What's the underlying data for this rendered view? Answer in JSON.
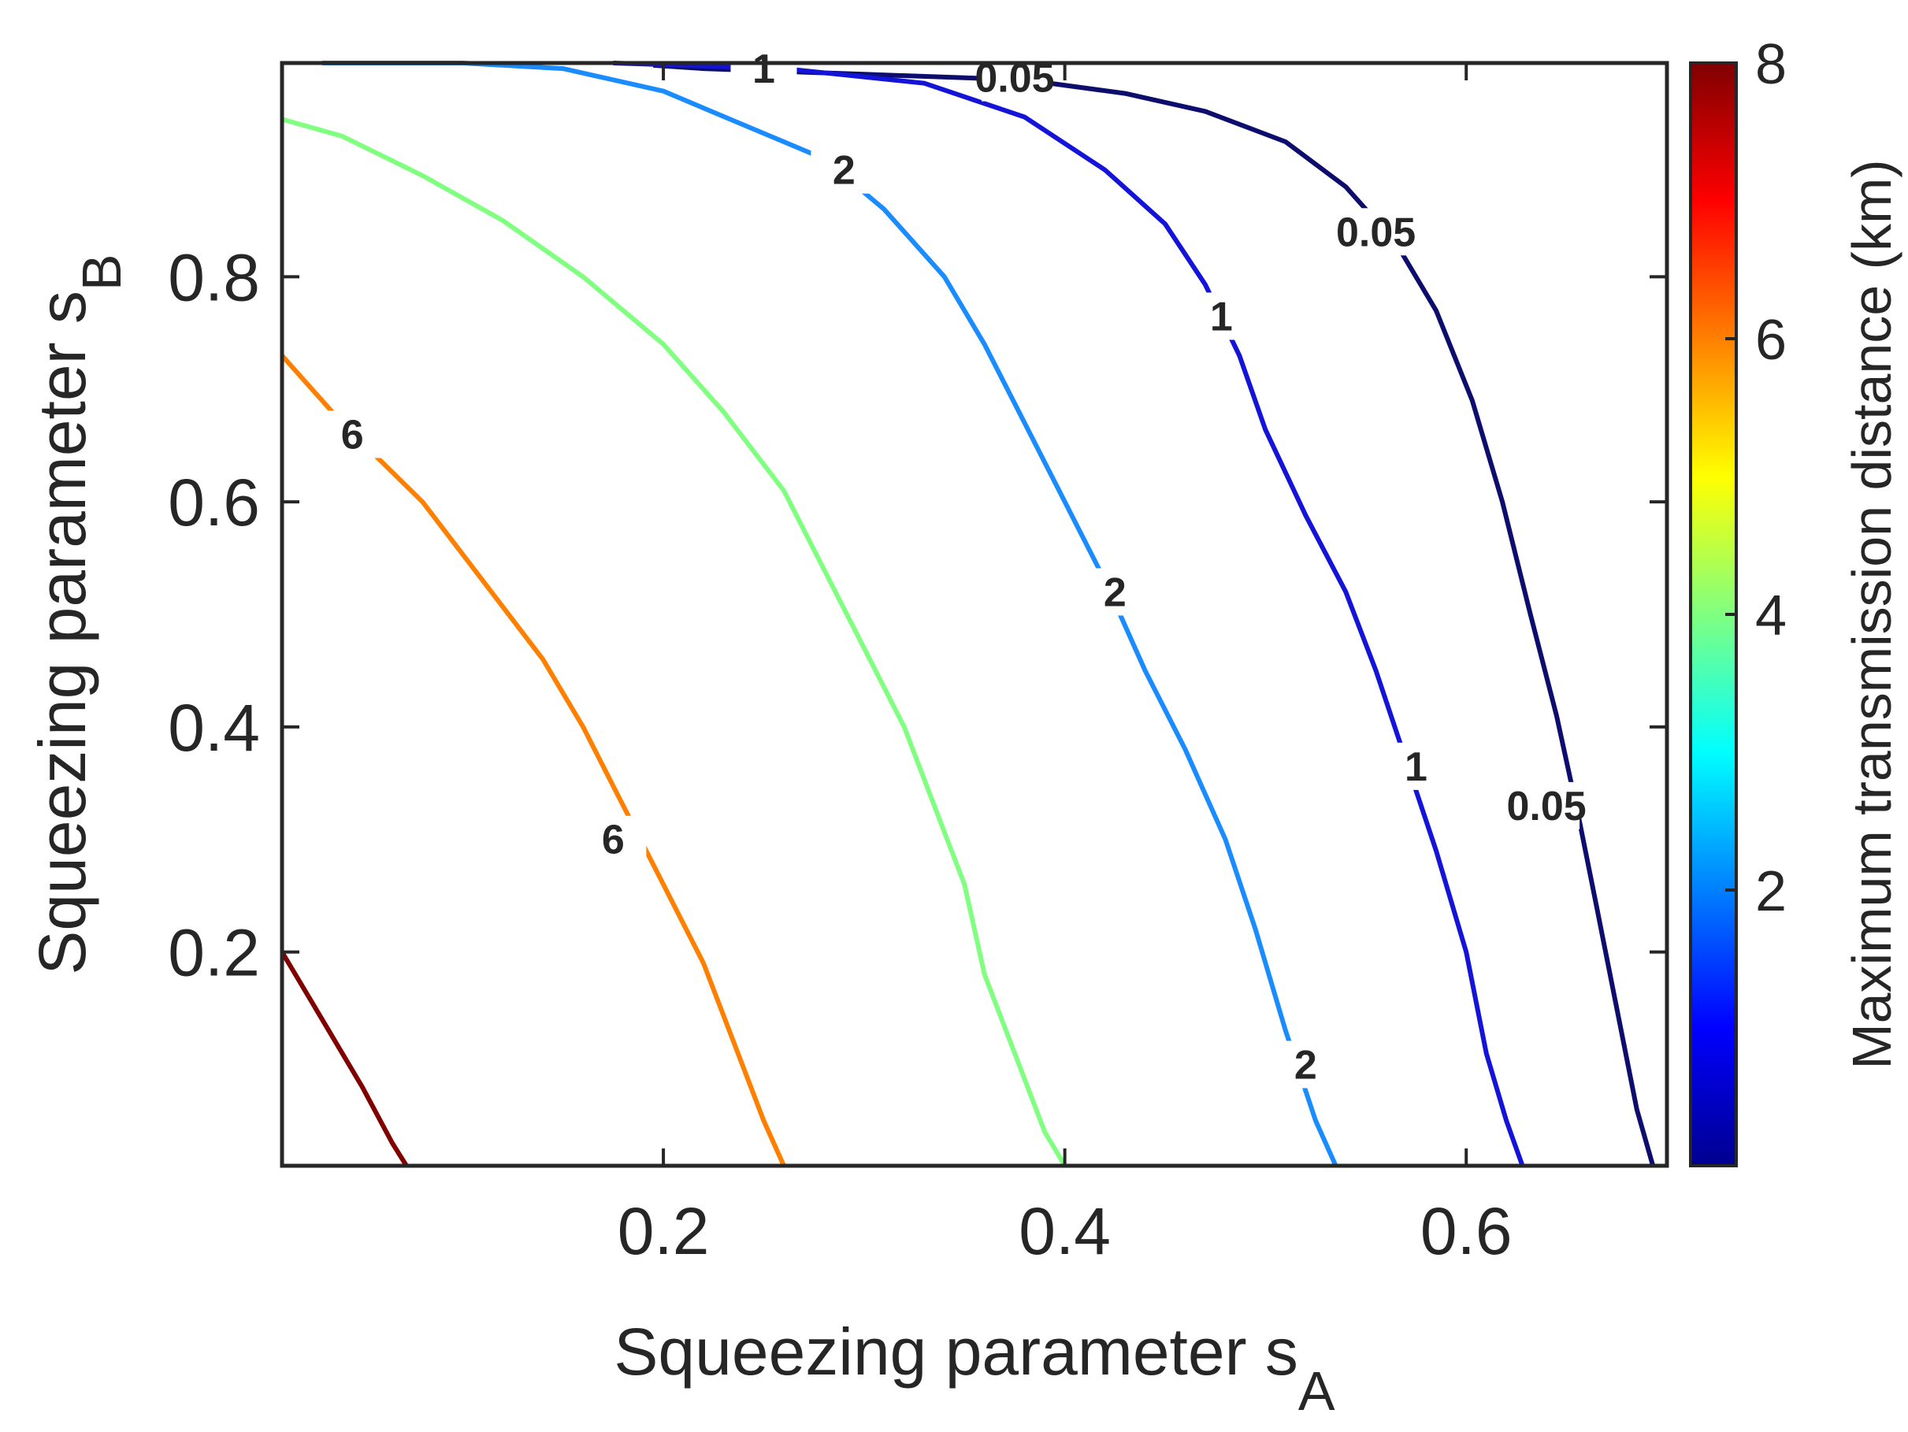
{
  "chart_data": {
    "type": "contour",
    "xlabel": "Squeezing parameter s",
    "xlabel_subscript": "A",
    "ylabel": "Squeezing parameter s",
    "ylabel_subscript": "B",
    "xlim": [
      0.01,
      0.7
    ],
    "ylim": [
      0.01,
      0.99
    ],
    "xticks": [
      "0.2",
      "0.4",
      "0.6"
    ],
    "yticks": [
      "0.2",
      "0.4",
      "0.6",
      "0.8"
    ],
    "grid": false,
    "colorbar": {
      "label": "Maximum transmission distance (km)",
      "range": [
        0,
        8
      ],
      "ticks": [
        "2",
        "4",
        "6",
        "8"
      ],
      "colormap": "jet"
    },
    "contours": [
      {
        "level": "0.05",
        "color": "#0d0d6e",
        "points": [
          [
            0.195,
            0.988
          ],
          [
            0.22,
            0.985
          ],
          [
            0.3,
            0.98
          ],
          [
            0.38,
            0.975
          ],
          [
            0.43,
            0.963
          ],
          [
            0.47,
            0.947
          ],
          [
            0.51,
            0.92
          ],
          [
            0.54,
            0.88
          ],
          [
            0.565,
            0.83
          ],
          [
            0.585,
            0.77
          ],
          [
            0.603,
            0.69
          ],
          [
            0.618,
            0.6
          ],
          [
            0.632,
            0.5
          ],
          [
            0.645,
            0.41
          ],
          [
            0.656,
            0.32
          ],
          [
            0.665,
            0.24
          ],
          [
            0.675,
            0.15
          ],
          [
            0.685,
            0.06
          ],
          [
            0.693,
            0.01
          ]
        ],
        "labels": [
          [
            0.375,
            0.977
          ],
          [
            0.555,
            0.84
          ],
          [
            0.64,
            0.33
          ]
        ]
      },
      {
        "level": "1",
        "color": "#1414d9",
        "points": [
          [
            0.175,
            0.99
          ],
          [
            0.26,
            0.985
          ],
          [
            0.33,
            0.972
          ],
          [
            0.38,
            0.942
          ],
          [
            0.42,
            0.895
          ],
          [
            0.45,
            0.847
          ],
          [
            0.47,
            0.793
          ],
          [
            0.487,
            0.73
          ],
          [
            0.5,
            0.664
          ],
          [
            0.52,
            0.588
          ],
          [
            0.54,
            0.52
          ],
          [
            0.555,
            0.45
          ],
          [
            0.57,
            0.37
          ],
          [
            0.585,
            0.29
          ],
          [
            0.6,
            0.2
          ],
          [
            0.61,
            0.11
          ],
          [
            0.62,
            0.05
          ],
          [
            0.628,
            0.01
          ]
        ],
        "labels": [
          [
            0.25,
            0.985
          ],
          [
            0.478,
            0.765
          ],
          [
            0.575,
            0.365
          ]
        ]
      },
      {
        "level": "2",
        "color": "#1a8cff",
        "points": [
          [
            0.03,
            0.99
          ],
          [
            0.1,
            0.99
          ],
          [
            0.15,
            0.985
          ],
          [
            0.2,
            0.965
          ],
          [
            0.24,
            0.935
          ],
          [
            0.28,
            0.905
          ],
          [
            0.31,
            0.86
          ],
          [
            0.34,
            0.8
          ],
          [
            0.36,
            0.74
          ],
          [
            0.38,
            0.67
          ],
          [
            0.4,
            0.6
          ],
          [
            0.42,
            0.53
          ],
          [
            0.44,
            0.45
          ],
          [
            0.46,
            0.38
          ],
          [
            0.48,
            0.3
          ],
          [
            0.495,
            0.22
          ],
          [
            0.51,
            0.13
          ],
          [
            0.525,
            0.05
          ],
          [
            0.535,
            0.01
          ]
        ],
        "labels": [
          [
            0.29,
            0.895
          ],
          [
            0.425,
            0.52
          ],
          [
            0.52,
            0.1
          ]
        ]
      },
      {
        "level": "4",
        "color": "#80ff80",
        "points": [
          [
            0.01,
            0.94
          ],
          [
            0.04,
            0.925
          ],
          [
            0.08,
            0.89
          ],
          [
            0.12,
            0.85
          ],
          [
            0.16,
            0.8
          ],
          [
            0.2,
            0.74
          ],
          [
            0.23,
            0.68
          ],
          [
            0.26,
            0.61
          ],
          [
            0.28,
            0.54
          ],
          [
            0.3,
            0.47
          ],
          [
            0.32,
            0.4
          ],
          [
            0.335,
            0.33
          ],
          [
            0.35,
            0.26
          ],
          [
            0.36,
            0.18
          ],
          [
            0.375,
            0.11
          ],
          [
            0.39,
            0.04
          ],
          [
            0.4,
            0.01
          ]
        ],
        "labels": []
      },
      {
        "level": "6",
        "color": "#ff8000",
        "points": [
          [
            0.01,
            0.73
          ],
          [
            0.04,
            0.67
          ],
          [
            0.08,
            0.6
          ],
          [
            0.11,
            0.53
          ],
          [
            0.14,
            0.46
          ],
          [
            0.16,
            0.4
          ],
          [
            0.18,
            0.33
          ],
          [
            0.2,
            0.26
          ],
          [
            0.22,
            0.19
          ],
          [
            0.235,
            0.12
          ],
          [
            0.25,
            0.05
          ],
          [
            0.26,
            0.01
          ]
        ],
        "labels": [
          [
            0.045,
            0.66
          ],
          [
            0.175,
            0.3
          ]
        ]
      },
      {
        "level": "8",
        "color": "#800000",
        "points": [
          [
            0.01,
            0.2
          ],
          [
            0.03,
            0.14
          ],
          [
            0.05,
            0.08
          ],
          [
            0.065,
            0.03
          ],
          [
            0.072,
            0.01
          ]
        ],
        "labels": []
      }
    ]
  }
}
